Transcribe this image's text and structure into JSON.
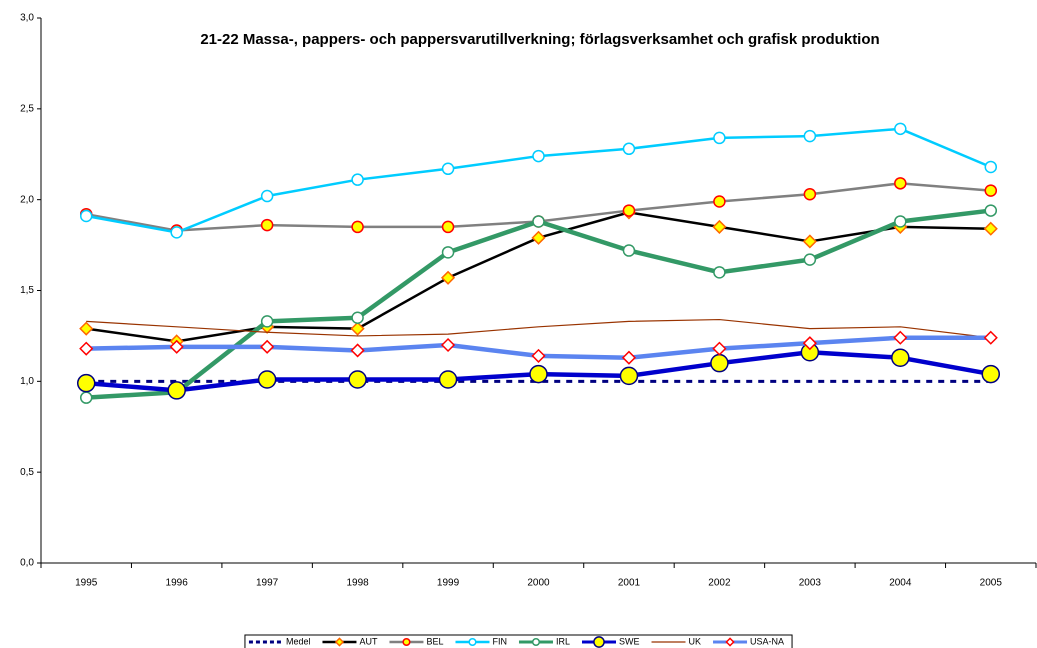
{
  "chart_data": {
    "type": "line",
    "title": "21-22 Massa-, pappers- och pappersvarutillverkning; förlagsverksamhet och grafisk produktion",
    "categories": [
      "1995",
      "1996",
      "1997",
      "1998",
      "1999",
      "2000",
      "2001",
      "2002",
      "2003",
      "2004",
      "2005"
    ],
    "ylim": [
      0,
      3
    ],
    "yticks": [
      {
        "value": 0,
        "label": "0,0"
      },
      {
        "value": 0.5,
        "label": "0,5"
      },
      {
        "value": 1,
        "label": "1,0"
      },
      {
        "value": 1.5,
        "label": "1,5"
      },
      {
        "value": 2,
        "label": "2,0"
      },
      {
        "value": 2.5,
        "label": "2,5"
      },
      {
        "value": 3,
        "label": "3,0"
      }
    ],
    "grid": false,
    "legend": "bottom",
    "series": [
      {
        "name": "Medel",
        "color": "#000080",
        "width": 3,
        "dash": "6,6",
        "marker": "none",
        "values": [
          1,
          1,
          1,
          1,
          1,
          1,
          1,
          1,
          1,
          1,
          1
        ]
      },
      {
        "name": "AUT",
        "color": "#000000",
        "width": 2.5,
        "marker": "diamond",
        "marker_fill": "#ffff00",
        "marker_stroke": "#ff6600",
        "values": [
          1.29,
          1.22,
          1.3,
          1.29,
          1.57,
          1.79,
          1.93,
          1.85,
          1.77,
          1.85,
          1.84
        ]
      },
      {
        "name": "BEL",
        "color": "#808080",
        "width": 2.5,
        "marker": "circle",
        "marker_fill": "#ffff00",
        "marker_stroke": "#ff0000",
        "values": [
          1.92,
          1.83,
          1.86,
          1.85,
          1.85,
          1.88,
          1.94,
          1.99,
          2.03,
          2.09,
          2.05
        ]
      },
      {
        "name": "FIN",
        "color": "#00ccff",
        "width": 2.5,
        "marker": "circle",
        "marker_fill": "#ffffff",
        "marker_stroke": "#00ccff",
        "values": [
          1.91,
          1.82,
          2.02,
          2.11,
          2.17,
          2.24,
          2.28,
          2.34,
          2.35,
          2.39,
          2.18
        ]
      },
      {
        "name": "IRL",
        "color": "#339966",
        "width": 4.5,
        "marker": "circle",
        "marker_fill": "#ffffff",
        "marker_stroke": "#339966",
        "values": [
          0.91,
          0.94,
          1.33,
          1.35,
          1.71,
          1.88,
          1.72,
          1.6,
          1.67,
          1.88,
          1.94
        ]
      },
      {
        "name": "SWE",
        "color": "#0000cc",
        "width": 4.5,
        "marker": "bigcircle",
        "marker_fill": "#ffff00",
        "marker_stroke": "#000080",
        "values": [
          0.99,
          0.95,
          1.01,
          1.01,
          1.01,
          1.04,
          1.03,
          1.1,
          1.16,
          1.13,
          1.04
        ]
      },
      {
        "name": "UK",
        "color": "#993300",
        "width": 1.2,
        "marker": "none",
        "values": [
          1.33,
          1.3,
          1.27,
          1.25,
          1.26,
          1.3,
          1.33,
          1.34,
          1.29,
          1.3,
          1.24
        ]
      },
      {
        "name": "USA-NA",
        "color": "#5b84f0",
        "width": 4.5,
        "marker": "diamond",
        "marker_fill": "#ffffff",
        "marker_stroke": "#ff0000",
        "values": [
          1.18,
          1.19,
          1.19,
          1.17,
          1.2,
          1.14,
          1.13,
          1.18,
          1.21,
          1.24,
          1.24
        ]
      }
    ]
  }
}
